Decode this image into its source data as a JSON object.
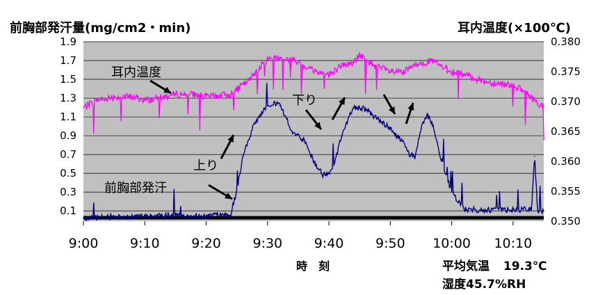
{
  "chart_data": {
    "type": "line",
    "left_axis_title": "前胸部発汗量(mg/cm2・min)",
    "right_axis_title": "耳内温度(×100℃)",
    "xlabel": "時　刻",
    "x_ticks": [
      "9:00",
      "9:10",
      "9:20",
      "9:30",
      "9:40",
      "9:50",
      "10:00",
      "10:10"
    ],
    "x_range_minutes": [
      0,
      75
    ],
    "y_left": {
      "range": [
        0,
        1.9
      ],
      "ticks": [
        "0.1",
        "0.3",
        "0.5",
        "0.7",
        "0.9",
        "1.1",
        "1.3",
        "1.5",
        "1.7",
        "1.9"
      ]
    },
    "y_right": {
      "range": [
        0.35,
        0.38
      ],
      "ticks": [
        "0.350",
        "0.355",
        "0.360",
        "0.365",
        "0.370",
        "0.375",
        "0.380"
      ]
    },
    "grid": true,
    "colors": {
      "plot_bg": "#c0c0c0",
      "ear_temp": "#ff00ff",
      "sweat": "#000080",
      "baseline": "#000000"
    },
    "series": [
      {
        "name": "耳内温度",
        "axis": "right",
        "x_minutes": [
          0,
          2,
          5,
          8,
          10,
          12,
          14,
          15,
          18,
          20,
          22,
          24,
          26,
          27,
          28,
          30,
          31,
          32,
          34,
          36,
          38,
          40,
          42,
          44,
          45,
          46,
          48,
          50,
          52,
          54,
          55,
          57,
          58,
          60,
          62,
          64,
          66,
          68,
          70,
          72,
          74,
          75
        ],
        "values": [
          0.369,
          0.3702,
          0.3708,
          0.3708,
          0.3702,
          0.3705,
          0.371,
          0.3712,
          0.3712,
          0.3708,
          0.371,
          0.3712,
          0.3728,
          0.3735,
          0.375,
          0.377,
          0.3775,
          0.3772,
          0.377,
          0.376,
          0.375,
          0.3745,
          0.376,
          0.3765,
          0.3778,
          0.3768,
          0.3758,
          0.375,
          0.3748,
          0.376,
          0.3765,
          0.3768,
          0.376,
          0.375,
          0.3745,
          0.3738,
          0.3732,
          0.373,
          0.3728,
          0.3715,
          0.3698,
          0.3692
        ]
      },
      {
        "name": "前胸部発汗",
        "axis": "left",
        "x_minutes": [
          0,
          5,
          10,
          15,
          20,
          24,
          25,
          26,
          28,
          30,
          31,
          32,
          33,
          34,
          36,
          37,
          38,
          39,
          40,
          41,
          42,
          43,
          44,
          45,
          46,
          47,
          48,
          49,
          50,
          51,
          52,
          53,
          54,
          55,
          56,
          57,
          58,
          60,
          62,
          65,
          70,
          73,
          73.5,
          74,
          75
        ],
        "values": [
          0.02,
          0.04,
          0.04,
          0.05,
          0.05,
          0.06,
          0.32,
          0.7,
          1.05,
          1.22,
          1.25,
          1.22,
          1.1,
          0.95,
          0.85,
          0.7,
          0.58,
          0.48,
          0.5,
          0.62,
          0.9,
          1.05,
          1.2,
          1.2,
          1.18,
          1.12,
          1.08,
          1.02,
          0.98,
          0.9,
          0.84,
          0.7,
          0.68,
          0.98,
          1.12,
          1.0,
          0.72,
          0.3,
          0.12,
          0.11,
          0.11,
          0.12,
          0.68,
          0.1,
          0.1
        ]
      }
    ],
    "annotations": [
      "耳内温度",
      "上り",
      "前胸部発汗",
      "下り"
    ]
  },
  "footer": {
    "avg_temp_label": "平均気温",
    "avg_temp_value": "19.3℃",
    "humidity": "湿度45.7%RH"
  }
}
